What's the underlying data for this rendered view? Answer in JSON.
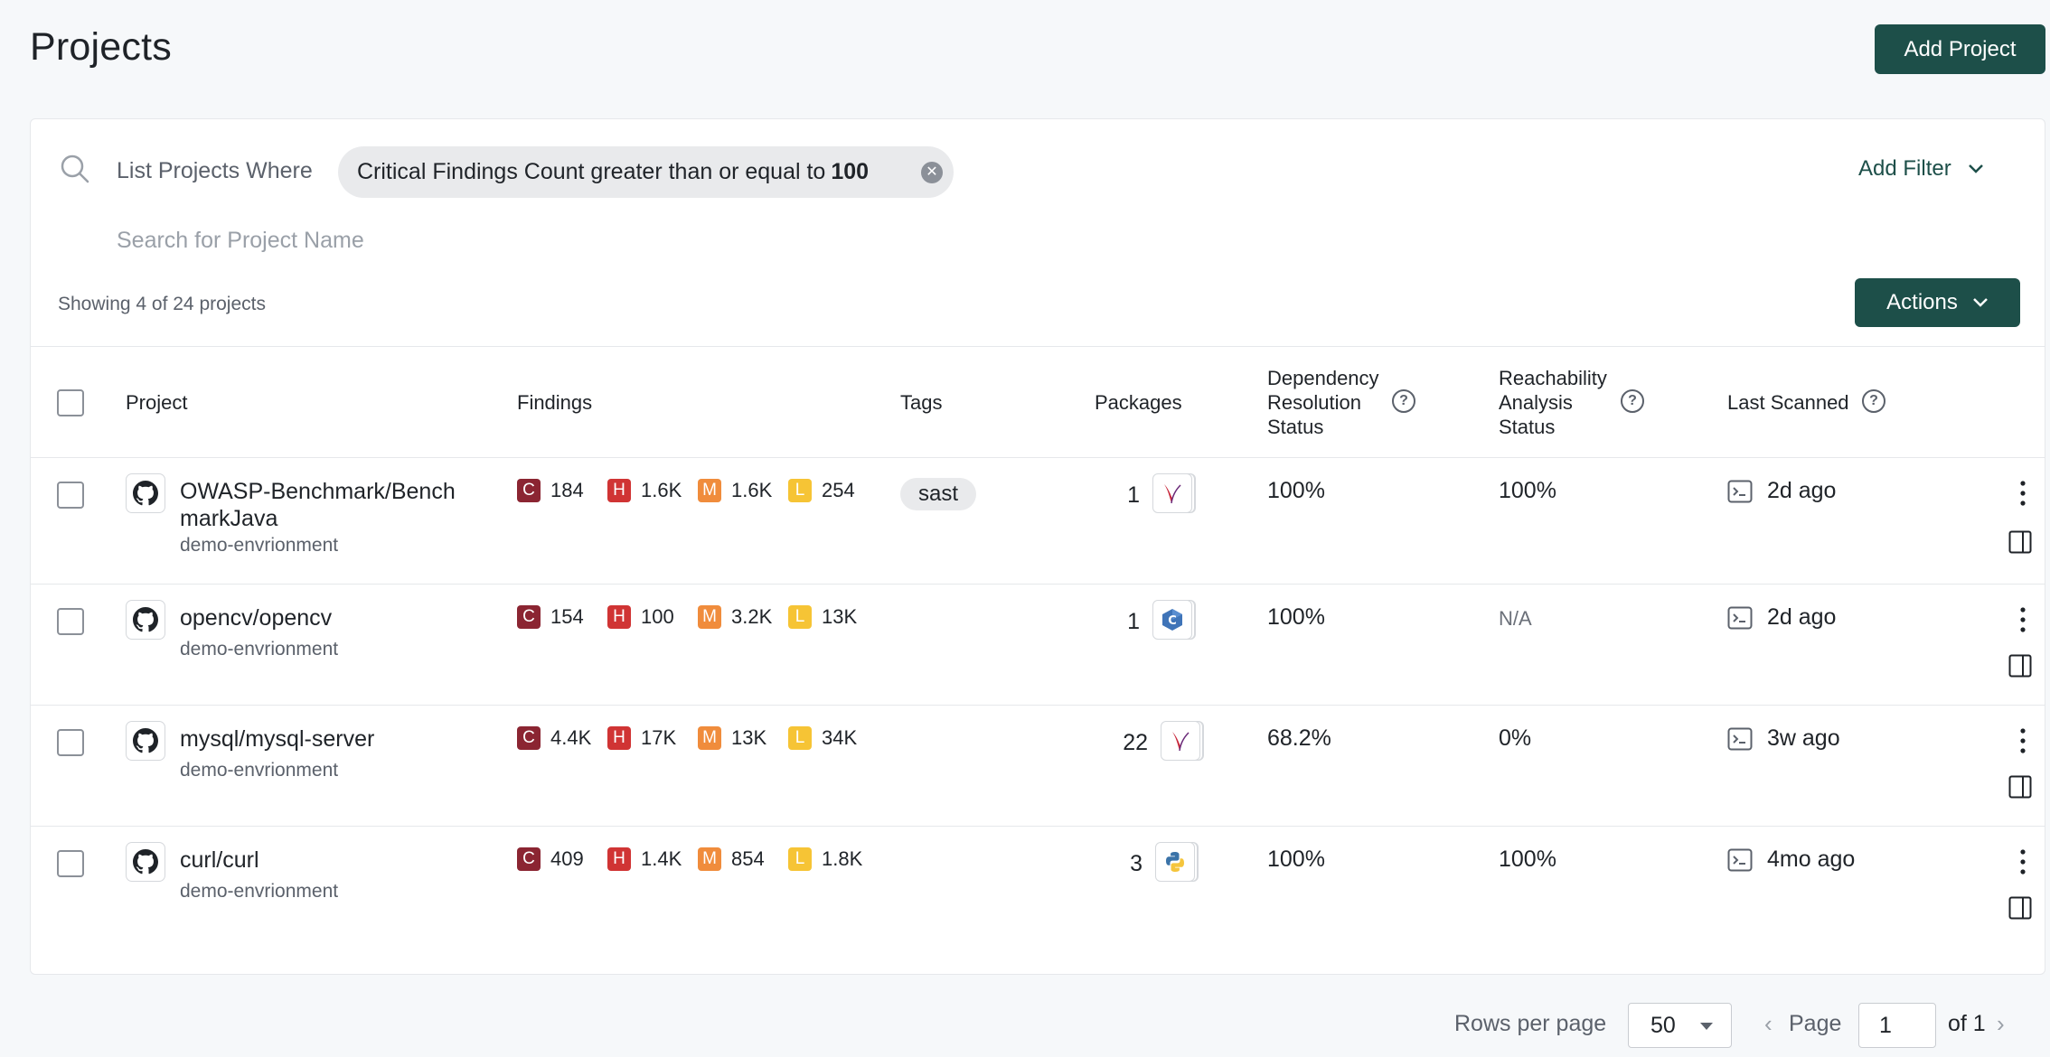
{
  "page": {
    "title": "Projects",
    "add_project_label": "Add Project"
  },
  "filter": {
    "where_label": "List Projects Where",
    "chip_text": "Critical Findings Count greater than or equal to",
    "chip_value": "100",
    "add_filter_label": "Add Filter",
    "search_placeholder": "Search for Project Name",
    "search_value": ""
  },
  "summary": {
    "showing_text": "Showing 4 of 24 projects",
    "actions_label": "Actions"
  },
  "table": {
    "headers": {
      "project": "Project",
      "findings": "Findings",
      "tags": "Tags",
      "packages": "Packages",
      "dependency_resolution": "Dependency Resolution Status",
      "dependency_resolution_lines": [
        "Dependency",
        "Resolution",
        "Status"
      ],
      "reachability": "Reachability Analysis Status",
      "reachability_lines": [
        "Reachability",
        "Analysis",
        "Status"
      ],
      "last_scanned": "Last Scanned"
    },
    "severity_letters": {
      "critical": "C",
      "high": "H",
      "medium": "M",
      "low": "L"
    },
    "severity_colors": {
      "critical": "#8b2532",
      "high": "#d03434",
      "medium": "#f08c3c",
      "low": "#f6c435"
    },
    "rows": [
      {
        "name": "OWASP-Benchmark/BenchmarkJava",
        "name_lines": [
          "OWASP-Benchmark/Bench",
          "markJava"
        ],
        "environment": "demo-envrionment",
        "repo_icon": "github-icon",
        "findings": {
          "critical": "184",
          "high": "1.6K",
          "medium": "1.6K",
          "low": "254"
        },
        "tag": "sast",
        "packages_count": "1",
        "package_icon": "maven-feather-icon",
        "dependency_resolution": "100%",
        "reachability": "100%",
        "last_scanned": "2d ago"
      },
      {
        "name": "opencv/opencv",
        "environment": "demo-envrionment",
        "repo_icon": "github-icon",
        "findings": {
          "critical": "154",
          "high": "100",
          "medium": "3.2K",
          "low": "13K"
        },
        "tag": "",
        "packages_count": "1",
        "package_icon": "cpp-icon",
        "dependency_resolution": "100%",
        "reachability": "N/A",
        "last_scanned": "2d ago"
      },
      {
        "name": "mysql/mysql-server",
        "environment": "demo-envrionment",
        "repo_icon": "github-icon",
        "findings": {
          "critical": "4.4K",
          "high": "17K",
          "medium": "13K",
          "low": "34K"
        },
        "tag": "",
        "packages_count": "22",
        "package_icon": "maven-feather-icon",
        "dependency_resolution": "68.2%",
        "reachability": "0%",
        "last_scanned": "3w ago"
      },
      {
        "name": "curl/curl",
        "environment": "demo-envrionment",
        "repo_icon": "github-icon",
        "findings": {
          "critical": "409",
          "high": "1.4K",
          "medium": "854",
          "low": "1.8K"
        },
        "tag": "",
        "packages_count": "3",
        "package_icon": "python-icon",
        "dependency_resolution": "100%",
        "reachability": "100%",
        "last_scanned": "4mo ago"
      }
    ]
  },
  "pagination": {
    "rows_per_page_label": "Rows per page",
    "rows_per_page_value": "50",
    "page_label": "Page",
    "page_value": "1",
    "of_label": "of 1"
  },
  "colors": {
    "primary": "#1d4f49",
    "background": "#f6f8fa"
  }
}
